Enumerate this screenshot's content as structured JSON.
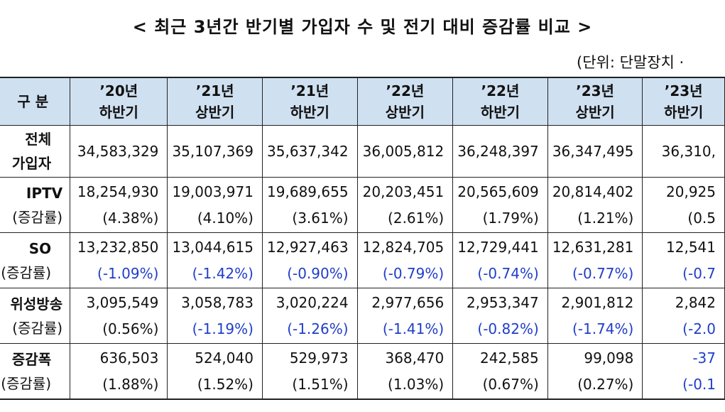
{
  "title": "< 최근 3년간 반기별 가입자 수 및 전기 대비 증감률 비교 >",
  "unit_note": "(단위: 단말장치 ·",
  "table": {
    "corner_header": "구 분",
    "periods": [
      {
        "year": "’20년",
        "half": "하반기"
      },
      {
        "year": "’21년",
        "half": "상반기"
      },
      {
        "year": "’21년",
        "half": "하반기"
      },
      {
        "year": "’22년",
        "half": "상반기"
      },
      {
        "year": "’22년",
        "half": "하반기"
      },
      {
        "year": "’23년",
        "half": "상반기"
      },
      {
        "year": "’23년",
        "half": "하반기"
      }
    ],
    "rows": [
      {
        "label": "전체",
        "label_sub": "가입자",
        "values": [
          "34,583,329",
          "35,107,369",
          "35,637,342",
          "36,005,812",
          "36,248,397",
          "36,347,495",
          "36,310,"
        ]
      },
      {
        "label": "IPTV",
        "label_sub": "(증감률)",
        "values": [
          "18,254,930",
          "19,003,971",
          "19,689,655",
          "20,203,451",
          "20,565,609",
          "20,814,402",
          "20,925"
        ],
        "rates": [
          "(4.38%)",
          "(4.10%)",
          "(3.61%)",
          "(2.61%)",
          "(1.79%)",
          "(1.21%)",
          "(0.5"
        ],
        "rate_negative": [
          false,
          false,
          false,
          false,
          false,
          false,
          false
        ]
      },
      {
        "label": "SO",
        "label_sub": "(증감률)",
        "values": [
          "13,232,850",
          "13,044,615",
          "12,927,463",
          "12,824,705",
          "12,729,441",
          "12,631,281",
          "12,541"
        ],
        "rates": [
          "(-1.09%)",
          "(-1.42%)",
          "(-0.90%)",
          "(-0.79%)",
          "(-0.74%)",
          "(-0.77%)",
          "(-0.7"
        ],
        "rate_negative": [
          true,
          true,
          true,
          true,
          true,
          true,
          true
        ]
      },
      {
        "label": "위성방송",
        "label_sub": "(증감률)",
        "values": [
          "3,095,549",
          "3,058,783",
          "3,020,224",
          "2,977,656",
          "2,953,347",
          "2,901,812",
          "2,842"
        ],
        "rates": [
          "(0.56%)",
          "(-1.19%)",
          "(-1.26%)",
          "(-1.41%)",
          "(-0.82%)",
          "(-1.74%)",
          "(-2.0"
        ],
        "rate_negative": [
          false,
          true,
          true,
          true,
          true,
          true,
          true
        ]
      },
      {
        "label": "증감폭",
        "label_sub": "(증감률)",
        "values": [
          "636,503",
          "524,040",
          "529,973",
          "368,470",
          "242,585",
          "99,098",
          "-37"
        ],
        "rates": [
          "(1.88%)",
          "(1.52%)",
          "(1.51%)",
          "(1.03%)",
          "(0.67%)",
          "(0.27%)",
          "(-0.1"
        ],
        "rate_negative": [
          false,
          false,
          false,
          false,
          false,
          false,
          true
        ],
        "value_negative": [
          false,
          false,
          false,
          false,
          false,
          false,
          true
        ]
      }
    ],
    "colors": {
      "header_bg": "#cfe0f0",
      "negative_text": "#1f3ec9"
    }
  }
}
